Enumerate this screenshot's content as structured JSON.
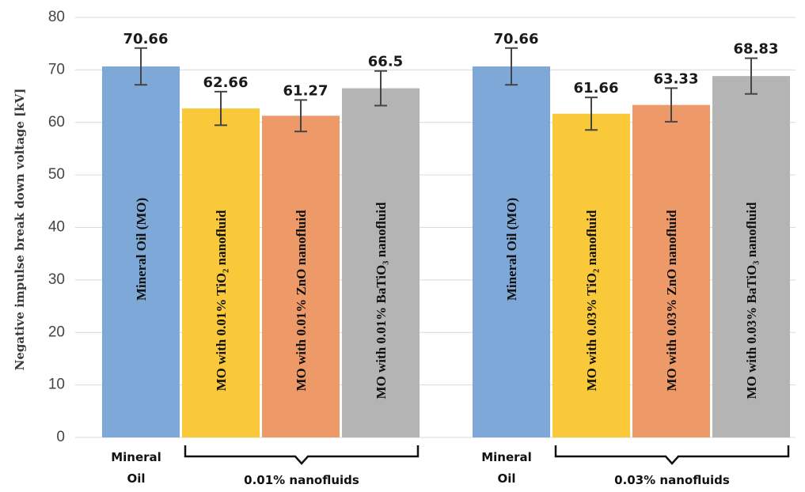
{
  "chart_data": {
    "type": "bar",
    "ylabel": "Negative impulse break down voltage [kV]",
    "ylim": [
      0,
      80
    ],
    "yticks": [
      0,
      10,
      20,
      30,
      40,
      50,
      60,
      70,
      80
    ],
    "grid": true,
    "groups": [
      {
        "category_label": "Mineral Oil",
        "bracket_label": "0.01% nanofluids",
        "bars": [
          {
            "label": "Mineral Oil (MO)",
            "value": 70.66,
            "value_text": "70.66",
            "error": 3.5,
            "color": "#7ea8d8"
          },
          {
            "label": "MO with 0.01% TiO₂ nanofluid",
            "value": 62.66,
            "value_text": "62.66",
            "error": 3.2,
            "color": "#fac93a"
          },
          {
            "label": "MO with 0.01% ZnO nanofluid",
            "value": 61.27,
            "value_text": "61.27",
            "error": 3.0,
            "color": "#ee9a68"
          },
          {
            "label": "MO with 0.01% BaTiO₃ nanofluid",
            "value": 66.5,
            "value_text": "66.5",
            "error": 3.3,
            "color": "#b4b4b4"
          }
        ]
      },
      {
        "category_label": "Mineral Oil",
        "bracket_label": "0.03% nanofluids",
        "bars": [
          {
            "label": "Mineral Oil (MO)",
            "value": 70.66,
            "value_text": "70.66",
            "error": 3.5,
            "color": "#7ea8d8"
          },
          {
            "label": "MO with 0.03% TiO₂ nanofluid",
            "value": 61.66,
            "value_text": "61.66",
            "error": 3.1,
            "color": "#fac93a"
          },
          {
            "label": "MO with 0.03% ZnO nanofluid",
            "value": 63.33,
            "value_text": "63.33",
            "error": 3.2,
            "color": "#ee9a68"
          },
          {
            "label": "MO with 0.03% BaTiO₃ nanofluid",
            "value": 68.83,
            "value_text": "68.83",
            "error": 3.4,
            "color": "#b4b4b4"
          }
        ]
      }
    ]
  }
}
